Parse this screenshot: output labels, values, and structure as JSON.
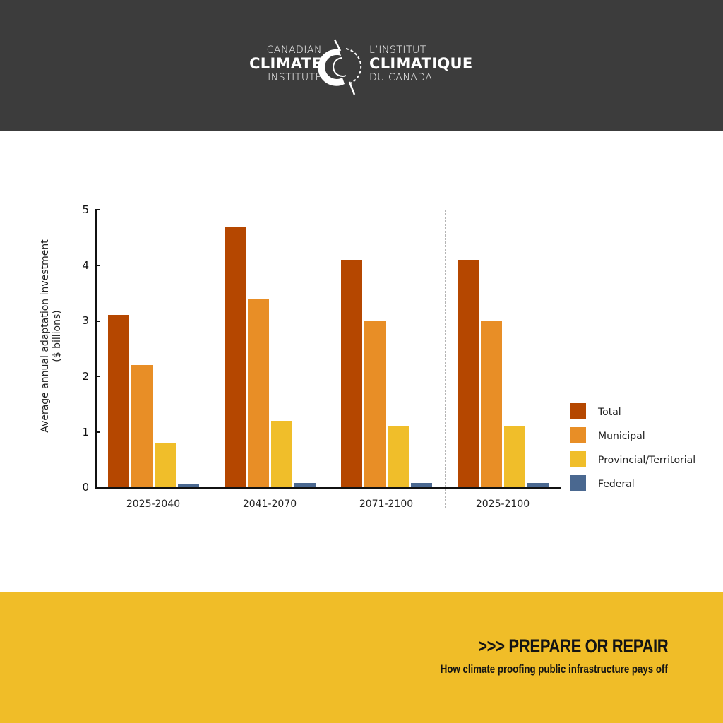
{
  "header": {
    "logo": {
      "en_line1": "CANADIAN",
      "en_line2": "CLIMATE",
      "en_line3": "INSTITUTE",
      "fr_line1": "L’INSTITUT",
      "fr_line2": "CLIMATIQUE",
      "fr_line3": "DU CANADA",
      "icon": "climate-institute-ring-logo"
    },
    "background": "#3c3c3c"
  },
  "chart_data": {
    "type": "bar",
    "title": "",
    "xlabel": "",
    "ylabel": "Average annual adaptation investment ($ billions)",
    "ylabel_line1": "Average annual adaptation investment",
    "ylabel_line2": "($ billions)",
    "ylim": [
      0,
      5
    ],
    "yticks": [
      "0",
      "1",
      "2",
      "3",
      "4",
      "5"
    ],
    "grid": false,
    "legend_position": "right",
    "categories": [
      "2025-2040",
      "2041-2070",
      "2071-2100",
      "2025-2100"
    ],
    "series": [
      {
        "name": "Total",
        "color": "#b54700",
        "values": [
          3.1,
          4.7,
          4.1,
          4.1
        ]
      },
      {
        "name": "Municipal",
        "color": "#e88e26",
        "values": [
          2.2,
          3.4,
          3.0,
          3.0
        ]
      },
      {
        "name": "Provincial/Territorial",
        "color": "#f0be2a",
        "values": [
          0.8,
          1.2,
          1.1,
          1.1
        ]
      },
      {
        "name": "Federal",
        "color": "#4a6890",
        "values": [
          0.05,
          0.08,
          0.07,
          0.07
        ]
      }
    ],
    "annotations": [
      "dashed vertical divider separating period ranges from full 2025-2100 average"
    ]
  },
  "footer": {
    "title": ">>> PREPARE OR REPAIR",
    "subtitle": "How climate proofing public infrastructure pays off",
    "background": "#f0bd28"
  }
}
